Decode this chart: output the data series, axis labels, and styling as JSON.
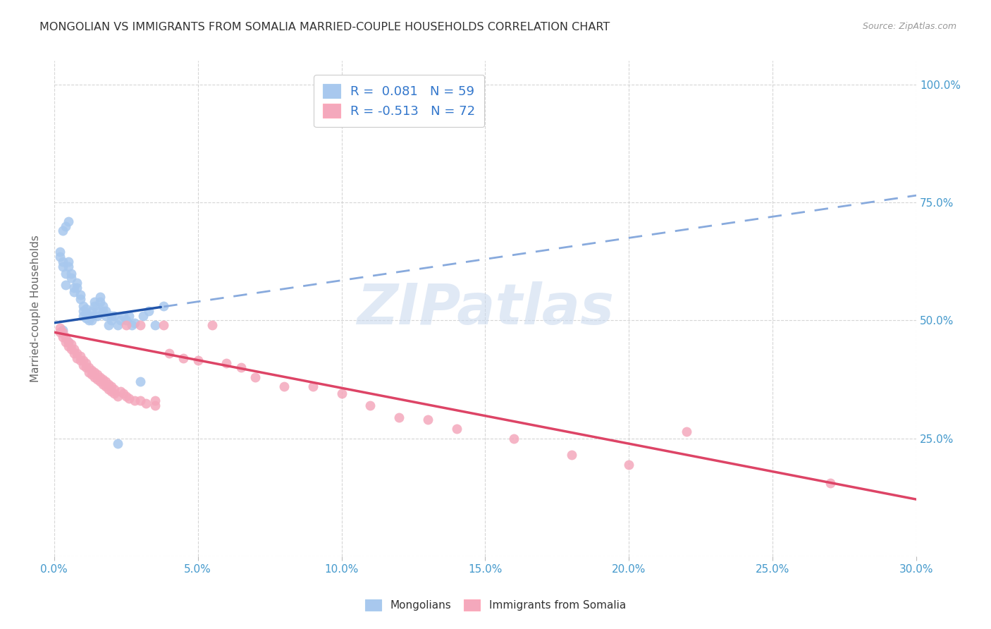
{
  "title": "MONGOLIAN VS IMMIGRANTS FROM SOMALIA MARRIED-COUPLE HOUSEHOLDS CORRELATION CHART",
  "source": "Source: ZipAtlas.com",
  "ylabel": "Married-couple Households",
  "watermark": "ZIPatlas",
  "legend_mongolians": "Mongolians",
  "legend_somalia": "Immigrants from Somalia",
  "R_mongolian": 0.081,
  "N_mongolian": 59,
  "R_somalia": -0.513,
  "N_somalia": 72,
  "blue_color": "#A8C8EE",
  "pink_color": "#F4A8BC",
  "blue_line_color": "#2255AA",
  "pink_line_color": "#DD4466",
  "blue_dash_color": "#88AADD",
  "label_color": "#4499CC",
  "legend_label_color": "#3377CC",
  "x_min": 0.0,
  "x_max": 0.3,
  "y_min": 0.0,
  "y_max": 1.05,
  "mongolian_x": [
    0.002,
    0.002,
    0.003,
    0.003,
    0.003,
    0.004,
    0.004,
    0.005,
    0.005,
    0.005,
    0.006,
    0.006,
    0.007,
    0.007,
    0.008,
    0.008,
    0.009,
    0.009,
    0.01,
    0.01,
    0.01,
    0.011,
    0.011,
    0.011,
    0.012,
    0.012,
    0.013,
    0.013,
    0.013,
    0.014,
    0.014,
    0.015,
    0.015,
    0.016,
    0.016,
    0.017,
    0.017,
    0.018,
    0.018,
    0.019,
    0.02,
    0.02,
    0.021,
    0.022,
    0.023,
    0.024,
    0.025,
    0.026,
    0.027,
    0.028,
    0.03,
    0.031,
    0.033,
    0.035,
    0.038,
    0.003,
    0.004,
    0.005,
    0.022
  ],
  "mongolian_y": [
    0.635,
    0.645,
    0.615,
    0.625,
    0.48,
    0.6,
    0.575,
    0.455,
    0.615,
    0.625,
    0.59,
    0.6,
    0.56,
    0.57,
    0.57,
    0.58,
    0.545,
    0.555,
    0.51,
    0.52,
    0.53,
    0.505,
    0.515,
    0.525,
    0.5,
    0.51,
    0.5,
    0.51,
    0.52,
    0.53,
    0.54,
    0.51,
    0.52,
    0.54,
    0.55,
    0.52,
    0.53,
    0.51,
    0.52,
    0.49,
    0.5,
    0.51,
    0.51,
    0.49,
    0.5,
    0.51,
    0.5,
    0.51,
    0.49,
    0.495,
    0.37,
    0.51,
    0.52,
    0.49,
    0.53,
    0.69,
    0.7,
    0.71,
    0.24
  ],
  "somalia_x": [
    0.002,
    0.002,
    0.003,
    0.003,
    0.004,
    0.004,
    0.005,
    0.005,
    0.006,
    0.006,
    0.007,
    0.007,
    0.008,
    0.008,
    0.009,
    0.009,
    0.01,
    0.01,
    0.011,
    0.011,
    0.012,
    0.012,
    0.013,
    0.013,
    0.014,
    0.014,
    0.015,
    0.015,
    0.016,
    0.016,
    0.017,
    0.017,
    0.018,
    0.018,
    0.019,
    0.019,
    0.02,
    0.02,
    0.021,
    0.021,
    0.022,
    0.023,
    0.024,
    0.025,
    0.026,
    0.028,
    0.03,
    0.032,
    0.035,
    0.038,
    0.04,
    0.045,
    0.05,
    0.055,
    0.06,
    0.065,
    0.07,
    0.08,
    0.09,
    0.1,
    0.11,
    0.12,
    0.13,
    0.14,
    0.16,
    0.18,
    0.2,
    0.22,
    0.025,
    0.03,
    0.035,
    0.27
  ],
  "somalia_y": [
    0.475,
    0.485,
    0.465,
    0.475,
    0.455,
    0.465,
    0.445,
    0.455,
    0.44,
    0.45,
    0.43,
    0.44,
    0.42,
    0.43,
    0.415,
    0.425,
    0.405,
    0.415,
    0.4,
    0.41,
    0.39,
    0.4,
    0.385,
    0.395,
    0.38,
    0.39,
    0.375,
    0.385,
    0.37,
    0.38,
    0.365,
    0.375,
    0.36,
    0.37,
    0.355,
    0.365,
    0.35,
    0.36,
    0.345,
    0.355,
    0.34,
    0.35,
    0.345,
    0.34,
    0.335,
    0.33,
    0.33,
    0.325,
    0.32,
    0.49,
    0.43,
    0.42,
    0.415,
    0.49,
    0.41,
    0.4,
    0.38,
    0.36,
    0.36,
    0.345,
    0.32,
    0.295,
    0.29,
    0.27,
    0.25,
    0.215,
    0.195,
    0.265,
    0.49,
    0.49,
    0.33,
    0.155
  ]
}
